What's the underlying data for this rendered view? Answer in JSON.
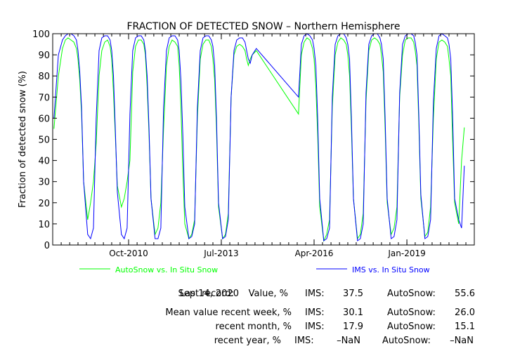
{
  "chart_data": {
    "type": "line",
    "title": "FRACTION OF DETECTED SNOW – Northern Hemisphere",
    "ylabel": "Fraction of detected snow (%)",
    "xlabel": "",
    "xlim": [
      "2008-07-01",
      "2020-12-31"
    ],
    "ylim": [
      0,
      100
    ],
    "yticks": [
      0,
      10,
      20,
      30,
      40,
      50,
      60,
      70,
      80,
      90,
      100
    ],
    "xticks": [
      {
        "label": "Oct-2010",
        "date": "2010-10-01"
      },
      {
        "label": "Jul-2013",
        "date": "2013-07-01"
      },
      {
        "label": "Apr-2016",
        "date": "2016-04-01"
      },
      {
        "label": "Jan-2019",
        "date": "2019-01-01"
      }
    ],
    "grid": false,
    "legend_position": "bottom",
    "series": [
      {
        "name": "AutoSnow vs. In Situ Snow",
        "color": "#00ff00",
        "x": [
          "2008-07-15",
          "2008-09-01",
          "2008-10-15",
          "2008-11-15",
          "2008-12-15",
          "2009-01-15",
          "2009-02-15",
          "2009-03-15",
          "2009-04-01",
          "2009-04-20",
          "2009-05-10",
          "2009-06-01",
          "2009-07-15",
          "2009-08-15",
          "2009-09-15",
          "2009-10-15",
          "2009-11-15",
          "2009-12-15",
          "2010-01-15",
          "2010-02-15",
          "2010-03-15",
          "2010-04-01",
          "2010-04-20",
          "2010-05-10",
          "2010-06-01",
          "2010-07-15",
          "2010-08-15",
          "2010-09-15",
          "2010-10-15",
          "2010-11-15",
          "2010-12-15",
          "2011-01-15",
          "2011-02-15",
          "2011-03-15",
          "2011-04-01",
          "2011-04-20",
          "2011-05-10",
          "2011-06-01",
          "2011-07-15",
          "2011-08-15",
          "2011-09-15",
          "2011-10-15",
          "2011-11-15",
          "2011-12-15",
          "2012-01-15",
          "2012-02-15",
          "2012-03-15",
          "2012-04-01",
          "2012-04-20",
          "2012-05-10",
          "2012-06-01",
          "2012-07-15",
          "2012-08-15",
          "2012-09-15",
          "2012-10-15",
          "2012-11-15",
          "2012-12-15",
          "2013-01-15",
          "2013-02-15",
          "2013-03-15",
          "2013-04-01",
          "2013-04-20",
          "2013-05-10",
          "2013-06-01",
          "2013-07-15",
          "2013-08-15",
          "2013-09-15",
          "2013-10-15",
          "2013-11-15",
          "2013-12-15",
          "2014-01-15",
          "2014-02-15",
          "2014-03-15",
          "2014-04-01",
          "2014-04-20",
          "2014-05-10",
          "2014-06-01",
          "2014-07-15",
          "2015-10-15",
          "2015-11-15",
          "2015-12-15",
          "2016-01-15",
          "2016-02-15",
          "2016-03-15",
          "2016-04-01",
          "2016-04-20",
          "2016-05-10",
          "2016-06-01",
          "2016-07-15",
          "2016-08-15",
          "2016-09-15",
          "2016-10-15",
          "2016-11-15",
          "2016-12-15",
          "2017-01-15",
          "2017-02-15",
          "2017-03-15",
          "2017-04-01",
          "2017-04-20",
          "2017-05-10",
          "2017-06-01",
          "2017-07-15",
          "2017-08-15",
          "2017-09-15",
          "2017-10-15",
          "2017-11-15",
          "2017-12-15",
          "2018-01-15",
          "2018-02-15",
          "2018-03-15",
          "2018-04-01",
          "2018-04-20",
          "2018-05-10",
          "2018-06-01",
          "2018-07-15",
          "2018-08-15",
          "2018-09-15",
          "2018-10-15",
          "2018-11-15",
          "2018-12-15",
          "2019-01-15",
          "2019-02-15",
          "2019-03-15",
          "2019-04-01",
          "2019-04-20",
          "2019-05-10",
          "2019-06-01",
          "2019-07-15",
          "2019-08-15",
          "2019-09-15",
          "2019-10-15",
          "2019-11-15",
          "2019-12-15",
          "2020-01-15",
          "2020-02-15",
          "2020-03-15",
          "2020-04-01",
          "2020-04-20",
          "2020-05-10",
          "2020-06-01",
          "2020-07-15",
          "2020-08-15",
          "2020-09-14"
        ],
        "y": [
          55,
          80,
          93,
          97,
          98,
          97,
          96,
          93,
          88,
          78,
          62,
          30,
          12,
          20,
          30,
          48,
          80,
          92,
          96,
          97,
          94,
          88,
          72,
          52,
          28,
          18,
          22,
          30,
          40,
          82,
          94,
          97,
          97,
          95,
          90,
          75,
          52,
          22,
          5,
          8,
          20,
          55,
          85,
          94,
          97,
          96,
          94,
          85,
          65,
          35,
          10,
          3,
          5,
          12,
          60,
          88,
          95,
          97,
          97,
          94,
          88,
          78,
          55,
          18,
          3,
          5,
          15,
          70,
          90,
          94,
          95,
          94,
          92,
          88,
          85,
          88,
          90,
          92,
          62,
          90,
          96,
          98,
          97,
          93,
          88,
          75,
          52,
          18,
          2,
          5,
          12,
          65,
          90,
          96,
          98,
          97,
          95,
          90,
          80,
          55,
          22,
          3,
          5,
          15,
          68,
          92,
          97,
          98,
          97,
          95,
          90,
          82,
          55,
          20,
          5,
          8,
          18,
          70,
          90,
          97,
          98,
          98,
          96,
          92,
          85,
          58,
          22,
          4,
          6,
          18,
          60,
          88,
          96,
          97,
          96,
          94,
          88,
          80,
          50,
          20,
          10,
          40,
          55.6
        ]
      },
      {
        "name": "IMS vs. In Situ Snow",
        "color": "#0000ff",
        "x": [
          "2008-07-15",
          "2008-09-01",
          "2008-10-15",
          "2008-11-15",
          "2008-12-15",
          "2009-01-15",
          "2009-02-15",
          "2009-03-15",
          "2009-04-01",
          "2009-04-20",
          "2009-05-10",
          "2009-06-01",
          "2009-07-15",
          "2009-08-15",
          "2009-09-15",
          "2009-10-15",
          "2009-11-15",
          "2009-12-15",
          "2010-01-15",
          "2010-02-15",
          "2010-03-15",
          "2010-04-01",
          "2010-04-20",
          "2010-05-10",
          "2010-06-01",
          "2010-07-15",
          "2010-08-15",
          "2010-09-15",
          "2010-10-15",
          "2010-11-15",
          "2010-12-15",
          "2011-01-15",
          "2011-02-15",
          "2011-03-15",
          "2011-04-01",
          "2011-04-20",
          "2011-05-10",
          "2011-06-01",
          "2011-07-15",
          "2011-08-15",
          "2011-09-15",
          "2011-10-15",
          "2011-11-15",
          "2011-12-15",
          "2012-01-15",
          "2012-02-15",
          "2012-03-15",
          "2012-04-01",
          "2012-04-20",
          "2012-05-10",
          "2012-06-01",
          "2012-07-15",
          "2012-08-15",
          "2012-09-15",
          "2012-10-15",
          "2012-11-15",
          "2012-12-15",
          "2013-01-15",
          "2013-02-15",
          "2013-03-15",
          "2013-04-01",
          "2013-04-20",
          "2013-05-10",
          "2013-06-01",
          "2013-07-15",
          "2013-08-15",
          "2013-09-15",
          "2013-10-15",
          "2013-11-15",
          "2013-12-15",
          "2014-01-15",
          "2014-02-15",
          "2014-03-15",
          "2014-04-01",
          "2014-04-20",
          "2014-05-10",
          "2014-06-01",
          "2014-07-15",
          "2015-10-15",
          "2015-11-15",
          "2015-12-15",
          "2016-01-15",
          "2016-02-15",
          "2016-03-15",
          "2016-04-01",
          "2016-04-20",
          "2016-05-10",
          "2016-06-01",
          "2016-07-15",
          "2016-08-15",
          "2016-09-15",
          "2016-10-15",
          "2016-11-15",
          "2016-12-15",
          "2017-01-15",
          "2017-02-15",
          "2017-03-15",
          "2017-04-01",
          "2017-04-20",
          "2017-05-10",
          "2017-06-01",
          "2017-07-15",
          "2017-08-15",
          "2017-09-15",
          "2017-10-15",
          "2017-11-15",
          "2017-12-15",
          "2018-01-15",
          "2018-02-15",
          "2018-03-15",
          "2018-04-01",
          "2018-04-20",
          "2018-05-10",
          "2018-06-01",
          "2018-07-15",
          "2018-08-15",
          "2018-09-15",
          "2018-10-15",
          "2018-11-15",
          "2018-12-15",
          "2019-01-15",
          "2019-02-15",
          "2019-03-15",
          "2019-04-01",
          "2019-04-20",
          "2019-05-10",
          "2019-06-01",
          "2019-07-15",
          "2019-08-15",
          "2019-09-15",
          "2019-10-15",
          "2019-11-15",
          "2019-12-15",
          "2020-01-15",
          "2020-02-15",
          "2020-03-15",
          "2020-04-01",
          "2020-04-20",
          "2020-05-10",
          "2020-06-01",
          "2020-07-15",
          "2020-08-15",
          "2020-09-14"
        ],
        "y": [
          60,
          90,
          97,
          99,
          100,
          100,
          99,
          97,
          92,
          82,
          65,
          30,
          5,
          3,
          8,
          60,
          92,
          98,
          99,
          99,
          97,
          92,
          80,
          55,
          25,
          5,
          3,
          8,
          62,
          92,
          98,
          99,
          99,
          97,
          92,
          80,
          55,
          22,
          3,
          3,
          8,
          65,
          92,
          98,
          99,
          99,
          97,
          92,
          78,
          52,
          18,
          3,
          4,
          10,
          65,
          92,
          98,
          99,
          99,
          97,
          94,
          85,
          60,
          20,
          3,
          4,
          12,
          70,
          92,
          97,
          98,
          98,
          96,
          92,
          88,
          86,
          90,
          93,
          70,
          95,
          99,
          100,
          99,
          97,
          93,
          85,
          60,
          22,
          2,
          3,
          8,
          70,
          95,
          99,
          100,
          100,
          98,
          95,
          88,
          60,
          22,
          2,
          3,
          10,
          72,
          95,
          99,
          100,
          100,
          98,
          95,
          88,
          60,
          22,
          3,
          4,
          12,
          72,
          95,
          99,
          100,
          100,
          99,
          96,
          90,
          62,
          24,
          3,
          4,
          12,
          68,
          93,
          99,
          100,
          99,
          98,
          95,
          88,
          62,
          22,
          12,
          8,
          37.5
        ]
      }
    ]
  },
  "stats": {
    "last_record_label": "Last record:",
    "last_record_date": "Sep 14, 2020",
    "value_label": "Value, %",
    "week_label": "Mean value recent week, %",
    "month_label": "recent month, %",
    "year_label": "recent year, %",
    "ims_label": "IMS:",
    "autosnow_label": "AutoSnow:",
    "value_ims": "37.5",
    "value_autosnow": "55.6",
    "week_ims": "30.1",
    "week_autosnow": "26.0",
    "month_ims": "17.9",
    "month_autosnow": "15.1",
    "year_ims": "–NaN",
    "year_autosnow": "–NaN"
  }
}
